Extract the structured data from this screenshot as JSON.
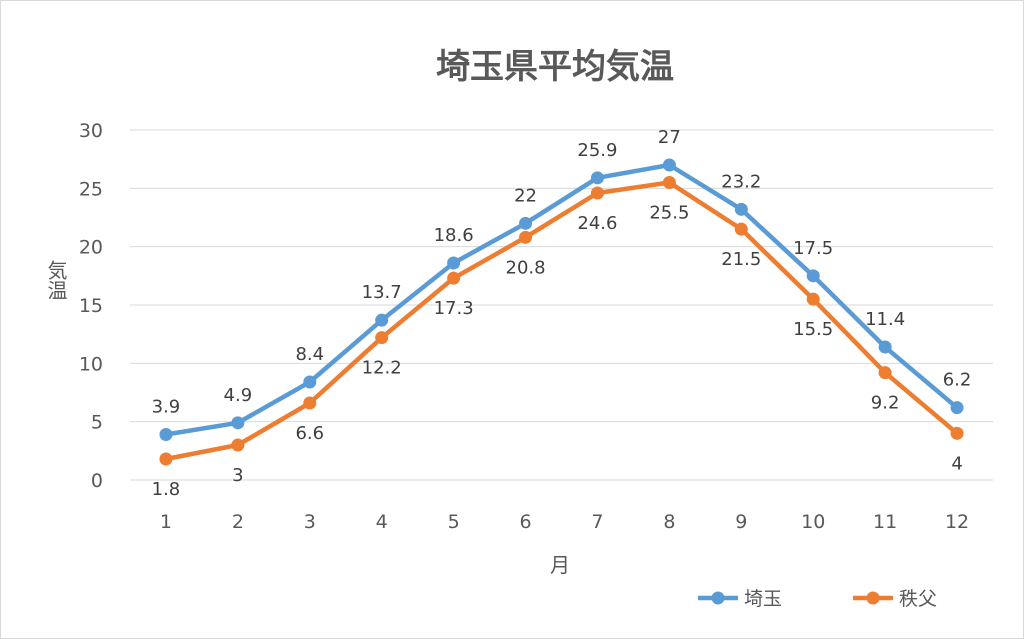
{
  "chart_data": {
    "type": "line",
    "title": "埼玉県平均気温",
    "xlabel": "月",
    "ylabel": "気温",
    "categories": [
      "1",
      "2",
      "3",
      "4",
      "5",
      "6",
      "7",
      "8",
      "9",
      "10",
      "11",
      "12"
    ],
    "yticks": [
      "0",
      "5",
      "10",
      "15",
      "20",
      "25",
      "30"
    ],
    "ylim": [
      0,
      30
    ],
    "grid": true,
    "legend_position": "bottom-right",
    "series": [
      {
        "name": "埼玉",
        "color": "#5b9bd5",
        "values": [
          3.9,
          4.9,
          8.4,
          13.7,
          18.6,
          22,
          25.9,
          27,
          23.2,
          17.5,
          11.4,
          6.2
        ],
        "labels": [
          "3.9",
          "4.9",
          "8.4",
          "13.7",
          "18.6",
          "22",
          "25.9",
          "27",
          "23.2",
          "17.5",
          "11.4",
          "6.2"
        ],
        "label_position": "above"
      },
      {
        "name": "秩父",
        "color": "#ed7d31",
        "values": [
          1.8,
          3,
          6.6,
          12.2,
          17.3,
          20.8,
          24.6,
          25.5,
          21.5,
          15.5,
          9.2,
          4
        ],
        "labels": [
          "1.8",
          "3",
          "6.6",
          "12.2",
          "17.3",
          "20.8",
          "24.6",
          "25.5",
          "21.5",
          "15.5",
          "9.2",
          "4"
        ],
        "label_position": "below"
      }
    ]
  }
}
